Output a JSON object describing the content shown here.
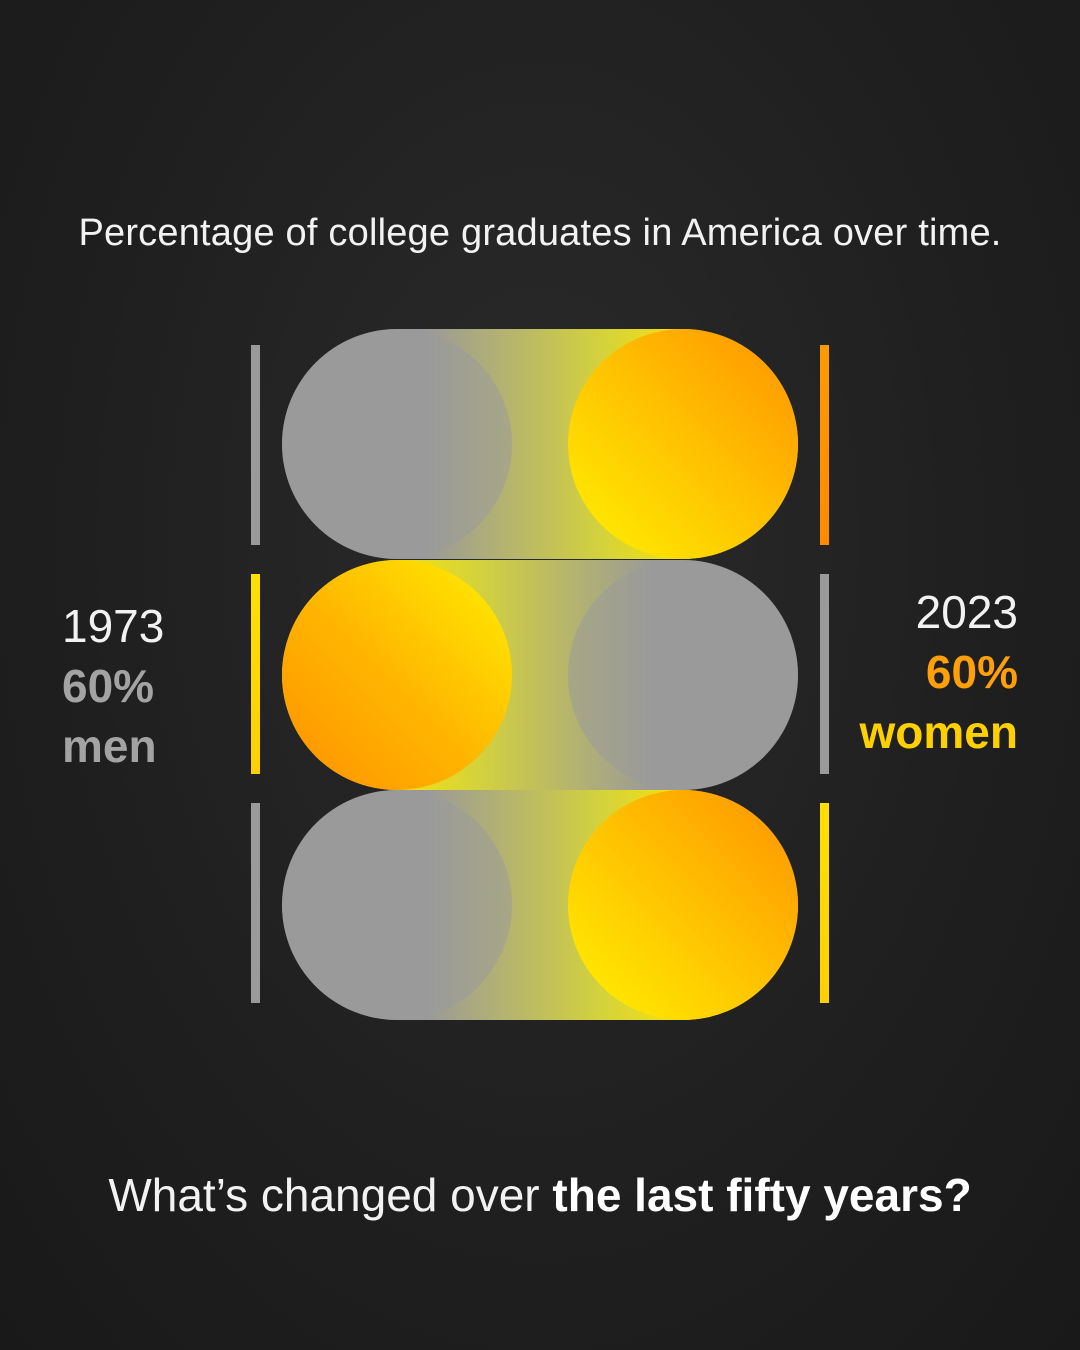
{
  "title": "Percentage of college graduates in America over time.",
  "left_label": {
    "year": "1973",
    "percent": "60%",
    "group": "men"
  },
  "right_label": {
    "year": "2023",
    "percent": "60%",
    "group": "women"
  },
  "question": {
    "prefix": "What’s changed over ",
    "emphasis": "the last fifty years?"
  },
  "toggles": [
    {
      "knob_side": "right"
    },
    {
      "knob_side": "left"
    },
    {
      "knob_side": "right"
    }
  ],
  "colors": {
    "gray": "#9a9a9a",
    "yellow": "#ffe600",
    "orange": "#ff9900",
    "background": "#1f1f1f"
  }
}
